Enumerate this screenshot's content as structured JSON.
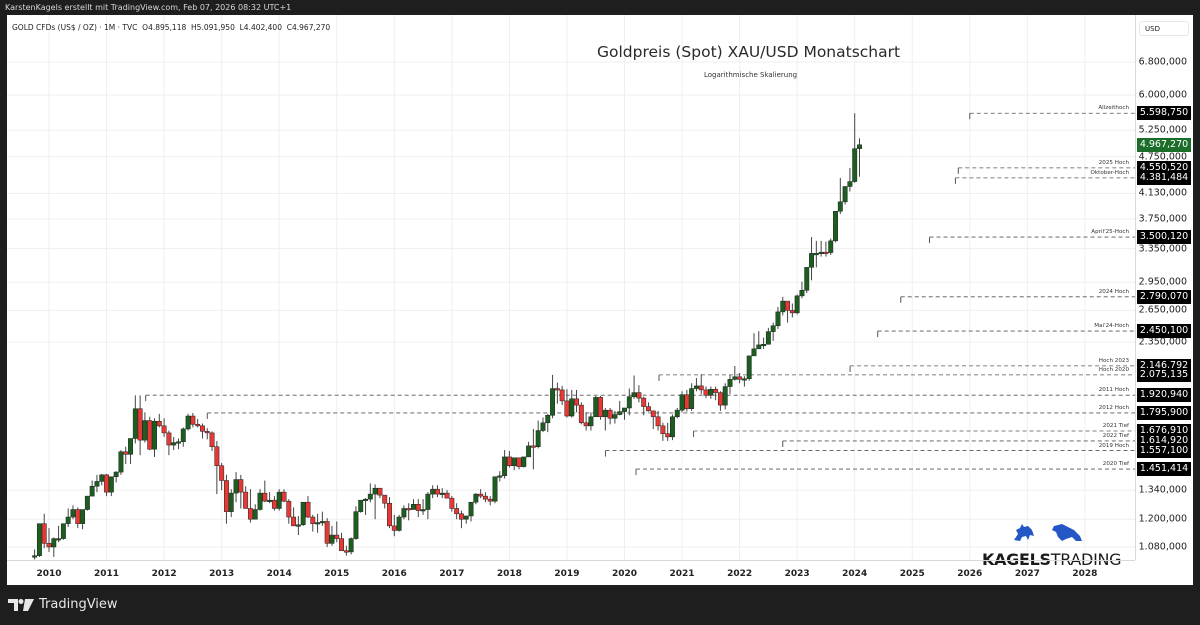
{
  "header": {
    "credit": "KarstenKagels erstellt mit TradingView.com, Feb 07, 2026 08:32 UTC+1"
  },
  "legend": {
    "symbol": "GOLD CFDs (US$ / OZ) · 1M · TVC",
    "open": "O4.895,118",
    "high": "H5.091,950",
    "low": "L4.402,400",
    "close": "C4.967,270"
  },
  "chart_data": {
    "type": "candlestick",
    "title": "Goldpreis (Spot) XAU/USD Monatschart",
    "subtitle": "Logarithmische Skalierung",
    "xlabel": "",
    "ylabel": "USD",
    "scale": "log",
    "currency_label": "USD",
    "x_ticks": [
      "2010",
      "2011",
      "2012",
      "2013",
      "2014",
      "2015",
      "2016",
      "2017",
      "2018",
      "2019",
      "2020",
      "2021",
      "2022",
      "2023",
      "2024",
      "2025",
      "2026",
      "2027",
      "2028"
    ],
    "y_ticks": [
      "6.800,000",
      "6.000,000",
      "5.250,000",
      "4.750,000",
      "4.130,000",
      "3.750,000",
      "3.350,000",
      "2.950,000",
      "2.650,000",
      "2.350,000",
      "1.340,000",
      "1.200,000",
      "1.080,000"
    ],
    "last_price": "4.967,270",
    "ylim": [
      1040,
      7200
    ],
    "grid": true,
    "levels": [
      {
        "name": "Allzeithoch",
        "value": 5598.75,
        "label": "5.598,750",
        "start": 2026.0
      },
      {
        "name": "2025 Hoch",
        "value": 4550.52,
        "label": "4.550,520",
        "start": 2025.8
      },
      {
        "name": "Oktober-Hoch",
        "value": 4381.484,
        "label": "4.381,484",
        "start": 2025.75
      },
      {
        "name": "April'25-Hoch",
        "value": 3500.12,
        "label": "3.500,120",
        "start": 2025.3
      },
      {
        "name": "2024 Hoch",
        "value": 2790.07,
        "label": "2.790,070",
        "start": 2024.8
      },
      {
        "name": "Mai'24-Hoch",
        "value": 2450.1,
        "label": "2.450,100",
        "start": 2024.4
      },
      {
        "name": "Hoch 2023",
        "value": 2146.792,
        "label": "2.146,792",
        "start": 2023.92
      },
      {
        "name": "Hoch 2020",
        "value": 2075.135,
        "label": "2.075,135",
        "start": 2020.6
      },
      {
        "name": "2011 Hoch",
        "value": 1920.94,
        "label": "1.920,940",
        "start": 2011.68
      },
      {
        "name": "2012 Hoch",
        "value": 1795.9,
        "label": "1.795,900",
        "start": 2012.75
      },
      {
        "name": "2021 Tief",
        "value": 1676.91,
        "label": "1.676,910",
        "start": 2021.2
      },
      {
        "name": "2022 Tief",
        "value": 1614.92,
        "label": "1.614,920",
        "start": 2022.75
      },
      {
        "name": "2019 Hoch",
        "value": 1557.1,
        "label": "1.557,100",
        "start": 2019.67
      },
      {
        "name": "2020 Tief",
        "value": 1451.414,
        "label": "1.451,414",
        "start": 2020.2
      }
    ],
    "candles_ohlc_monthly_start_2009_10": [
      [
        1040,
        1070,
        1030,
        1045
      ],
      [
        1045,
        1140,
        1040,
        1180
      ],
      [
        1180,
        1225,
        1075,
        1095
      ],
      [
        1095,
        1160,
        1060,
        1080
      ],
      [
        1080,
        1120,
        1040,
        1115
      ],
      [
        1115,
        1170,
        1100,
        1115
      ],
      [
        1115,
        1180,
        1110,
        1180
      ],
      [
        1180,
        1250,
        1165,
        1210
      ],
      [
        1210,
        1265,
        1200,
        1245
      ],
      [
        1245,
        1255,
        1160,
        1180
      ],
      [
        1180,
        1240,
        1155,
        1245
      ],
      [
        1245,
        1310,
        1240,
        1310
      ],
      [
        1310,
        1390,
        1310,
        1360
      ],
      [
        1360,
        1420,
        1330,
        1385
      ],
      [
        1385,
        1425,
        1365,
        1420
      ],
      [
        1420,
        1425,
        1310,
        1330
      ],
      [
        1330,
        1410,
        1310,
        1410
      ],
      [
        1410,
        1440,
        1380,
        1435
      ],
      [
        1435,
        1560,
        1420,
        1550
      ],
      [
        1550,
        1580,
        1480,
        1535
      ],
      [
        1535,
        1630,
        1480,
        1630
      ],
      [
        1630,
        1920,
        1600,
        1825
      ],
      [
        1825,
        1920,
        1530,
        1620
      ],
      [
        1620,
        1800,
        1605,
        1745
      ],
      [
        1745,
        1770,
        1560,
        1565
      ],
      [
        1565,
        1760,
        1520,
        1740
      ],
      [
        1740,
        1790,
        1700,
        1710
      ],
      [
        1710,
        1760,
        1640,
        1665
      ],
      [
        1665,
        1680,
        1530,
        1590
      ],
      [
        1590,
        1640,
        1560,
        1605
      ],
      [
        1605,
        1630,
        1565,
        1610
      ],
      [
        1610,
        1700,
        1580,
        1690
      ],
      [
        1690,
        1790,
        1680,
        1775
      ],
      [
        1775,
        1795,
        1700,
        1720
      ],
      [
        1720,
        1755,
        1700,
        1710
      ],
      [
        1710,
        1725,
        1630,
        1675
      ],
      [
        1675,
        1695,
        1625,
        1665
      ],
      [
        1665,
        1675,
        1555,
        1580
      ],
      [
        1580,
        1615,
        1320,
        1470
      ],
      [
        1470,
        1485,
        1340,
        1390
      ],
      [
        1390,
        1420,
        1180,
        1235
      ],
      [
        1235,
        1345,
        1210,
        1325
      ],
      [
        1325,
        1435,
        1280,
        1395
      ],
      [
        1395,
        1420,
        1250,
        1330
      ],
      [
        1330,
        1360,
        1280,
        1250
      ],
      [
        1250,
        1345,
        1185,
        1200
      ],
      [
        1200,
        1270,
        1200,
        1245
      ],
      [
        1245,
        1345,
        1240,
        1325
      ],
      [
        1325,
        1390,
        1280,
        1285
      ],
      [
        1285,
        1330,
        1275,
        1290
      ],
      [
        1290,
        1310,
        1240,
        1250
      ],
      [
        1250,
        1345,
        1240,
        1330
      ],
      [
        1330,
        1345,
        1280,
        1285
      ],
      [
        1285,
        1295,
        1180,
        1210
      ],
      [
        1210,
        1255,
        1180,
        1170
      ],
      [
        1170,
        1215,
        1130,
        1175
      ],
      [
        1175,
        1260,
        1170,
        1280
      ],
      [
        1280,
        1310,
        1205,
        1210
      ],
      [
        1210,
        1220,
        1145,
        1180
      ],
      [
        1180,
        1225,
        1140,
        1185
      ],
      [
        1185,
        1235,
        1170,
        1190
      ],
      [
        1190,
        1205,
        1080,
        1095
      ],
      [
        1095,
        1170,
        1085,
        1130
      ],
      [
        1130,
        1190,
        1100,
        1115
      ],
      [
        1115,
        1140,
        1070,
        1065
      ],
      [
        1065,
        1085,
        1045,
        1060
      ],
      [
        1060,
        1120,
        1050,
        1115
      ],
      [
        1115,
        1260,
        1110,
        1235
      ],
      [
        1235,
        1280,
        1230,
        1290
      ],
      [
        1290,
        1300,
        1220,
        1295
      ],
      [
        1295,
        1375,
        1280,
        1320
      ],
      [
        1320,
        1370,
        1200,
        1350
      ],
      [
        1350,
        1350,
        1300,
        1315
      ],
      [
        1315,
        1310,
        1250,
        1275
      ],
      [
        1275,
        1305,
        1160,
        1170
      ],
      [
        1170,
        1220,
        1125,
        1150
      ],
      [
        1150,
        1220,
        1145,
        1210
      ],
      [
        1210,
        1265,
        1200,
        1250
      ],
      [
        1250,
        1275,
        1195,
        1245
      ],
      [
        1245,
        1295,
        1255,
        1270
      ],
      [
        1270,
        1295,
        1210,
        1240
      ],
      [
        1240,
        1295,
        1220,
        1245
      ],
      [
        1245,
        1330,
        1200,
        1320
      ],
      [
        1320,
        1365,
        1300,
        1345
      ],
      [
        1345,
        1365,
        1305,
        1320
      ],
      [
        1320,
        1350,
        1300,
        1325
      ],
      [
        1325,
        1340,
        1310,
        1300
      ],
      [
        1300,
        1310,
        1235,
        1250
      ],
      [
        1250,
        1275,
        1200,
        1225
      ],
      [
        1225,
        1240,
        1160,
        1200
      ],
      [
        1200,
        1215,
        1180,
        1215
      ],
      [
        1215,
        1245,
        1190,
        1280
      ],
      [
        1280,
        1325,
        1270,
        1320
      ],
      [
        1320,
        1345,
        1300,
        1310
      ],
      [
        1310,
        1330,
        1280,
        1295
      ],
      [
        1295,
        1310,
        1265,
        1285
      ],
      [
        1285,
        1350,
        1275,
        1410
      ],
      [
        1410,
        1440,
        1385,
        1415
      ],
      [
        1415,
        1560,
        1400,
        1520
      ],
      [
        1520,
        1555,
        1460,
        1470
      ],
      [
        1470,
        1515,
        1445,
        1515
      ],
      [
        1515,
        1515,
        1450,
        1465
      ],
      [
        1465,
        1520,
        1460,
        1520
      ],
      [
        1520,
        1610,
        1520,
        1585
      ],
      [
        1585,
        1690,
        1450,
        1580
      ],
      [
        1580,
        1745,
        1570,
        1680
      ],
      [
        1680,
        1765,
        1670,
        1730
      ],
      [
        1730,
        1790,
        1670,
        1780
      ],
      [
        1780,
        2075,
        1760,
        1970
      ],
      [
        1970,
        2015,
        1860,
        1960
      ],
      [
        1960,
        1990,
        1850,
        1880
      ],
      [
        1880,
        1965,
        1765,
        1775
      ],
      [
        1775,
        1960,
        1765,
        1895
      ],
      [
        1895,
        1960,
        1800,
        1850
      ],
      [
        1850,
        1870,
        1720,
        1730
      ],
      [
        1730,
        1800,
        1680,
        1710
      ],
      [
        1710,
        1800,
        1680,
        1770
      ],
      [
        1770,
        1915,
        1770,
        1905
      ],
      [
        1905,
        1915,
        1750,
        1770
      ],
      [
        1770,
        1830,
        1680,
        1815
      ],
      [
        1815,
        1830,
        1720,
        1760
      ],
      [
        1760,
        1810,
        1725,
        1785
      ],
      [
        1785,
        1880,
        1780,
        1805
      ],
      [
        1805,
        1830,
        1750,
        1830
      ],
      [
        1830,
        1970,
        1780,
        1910
      ],
      [
        1910,
        2070,
        1895,
        1940
      ],
      [
        1940,
        1995,
        1870,
        1900
      ],
      [
        1900,
        1910,
        1780,
        1840
      ],
      [
        1840,
        1870,
        1805,
        1810
      ],
      [
        1810,
        1810,
        1690,
        1770
      ],
      [
        1770,
        1810,
        1680,
        1710
      ],
      [
        1710,
        1730,
        1615,
        1660
      ],
      [
        1660,
        1730,
        1615,
        1640
      ],
      [
        1640,
        1785,
        1620,
        1770
      ],
      [
        1770,
        1830,
        1760,
        1815
      ],
      [
        1815,
        1950,
        1800,
        1925
      ],
      [
        1925,
        1960,
        1805,
        1825
      ],
      [
        1825,
        2010,
        1810,
        1970
      ],
      [
        1970,
        2050,
        1950,
        1990
      ],
      [
        1990,
        2080,
        1930,
        1960
      ],
      [
        1960,
        1985,
        1900,
        1920
      ],
      [
        1920,
        1985,
        1895,
        1965
      ],
      [
        1965,
        1985,
        1885,
        1940
      ],
      [
        1940,
        1950,
        1810,
        1850
      ],
      [
        1850,
        2010,
        1820,
        1985
      ],
      [
        1985,
        2075,
        1930,
        2040
      ],
      [
        2040,
        2146,
        2030,
        2060
      ],
      [
        2060,
        2090,
        2010,
        2040
      ],
      [
        2040,
        2065,
        1985,
        2045
      ],
      [
        2045,
        2195,
        2030,
        2230
      ],
      [
        2230,
        2430,
        2230,
        2290
      ],
      [
        2290,
        2450,
        2290,
        2325
      ],
      [
        2325,
        2390,
        2290,
        2330
      ],
      [
        2330,
        2480,
        2350,
        2445
      ],
      [
        2445,
        2530,
        2360,
        2500
      ],
      [
        2500,
        2685,
        2470,
        2635
      ],
      [
        2635,
        2790,
        2600,
        2745
      ],
      [
        2745,
        2720,
        2530,
        2650
      ],
      [
        2650,
        2720,
        2580,
        2625
      ],
      [
        2625,
        2815,
        2610,
        2800
      ],
      [
        2800,
        2955,
        2775,
        2860
      ],
      [
        2860,
        3120,
        2830,
        3120
      ],
      [
        3120,
        3500,
        2970,
        3290
      ],
      [
        3290,
        3450,
        3120,
        3290
      ],
      [
        3290,
        3450,
        3250,
        3305
      ],
      [
        3305,
        3440,
        3250,
        3300
      ],
      [
        3300,
        3480,
        3270,
        3450
      ],
      [
        3450,
        3860,
        3430,
        3860
      ],
      [
        3860,
        4381,
        3820,
        4000
      ],
      [
        4000,
        4245,
        3960,
        4240
      ],
      [
        4240,
        4550,
        4160,
        4320
      ],
      [
        4320,
        5598,
        4300,
        4895
      ],
      [
        4895,
        5092,
        4402,
        4967
      ]
    ]
  },
  "watermark": {
    "brand_bold": "KAGELS",
    "brand_regular": "TRADING"
  },
  "footer": {
    "tradingview_logo_text": "TradingView"
  }
}
